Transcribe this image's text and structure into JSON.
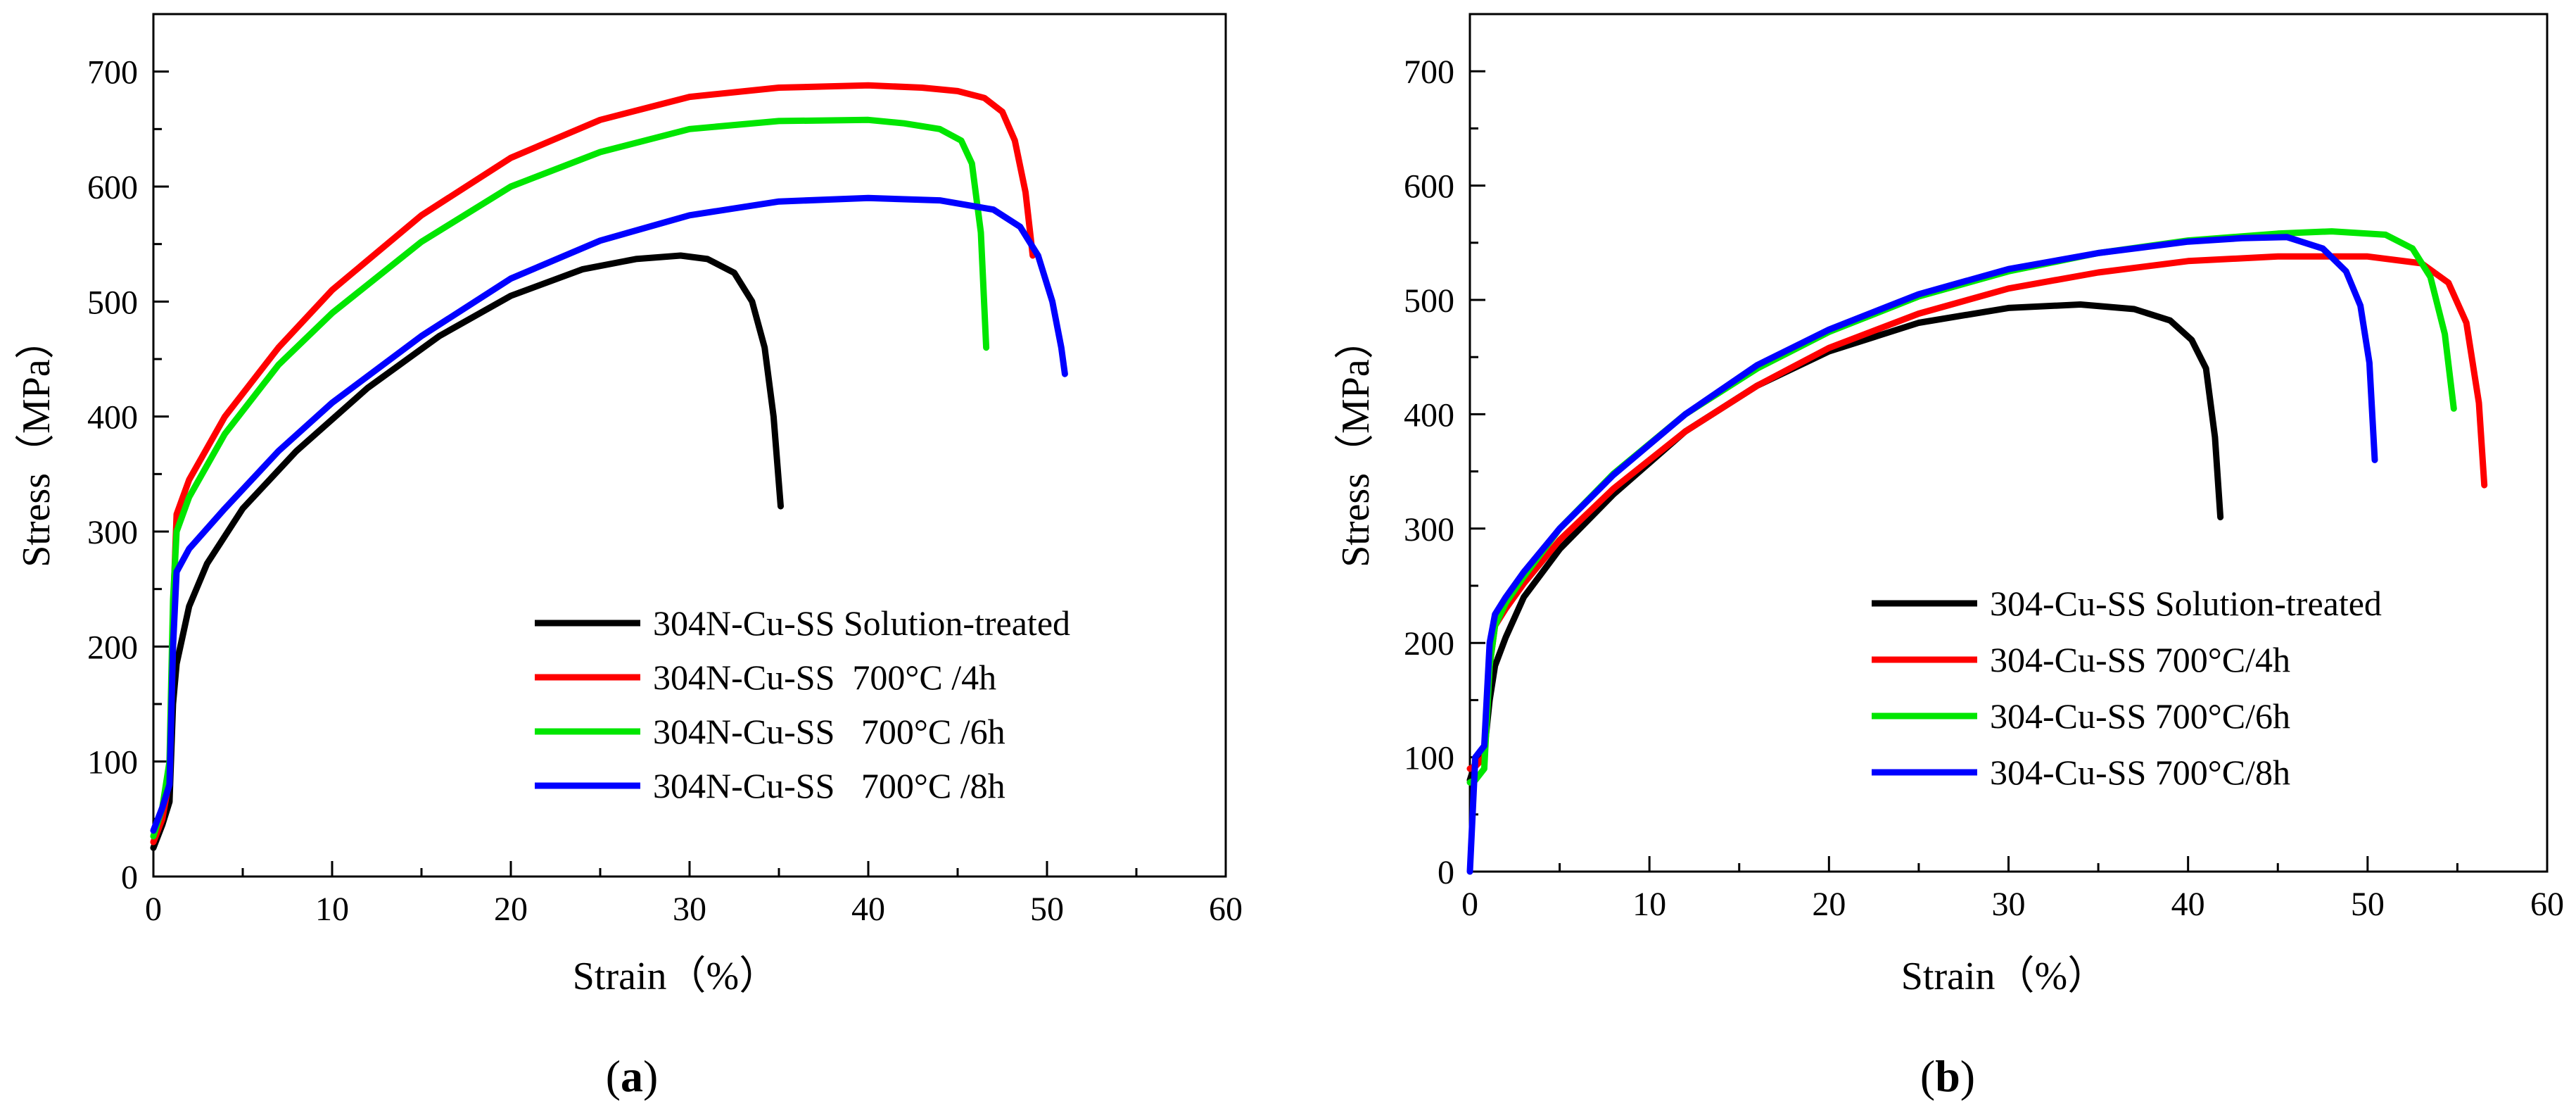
{
  "chart_data": [
    {
      "type": "line",
      "panel_label": "(a)",
      "panel_label_parts": [
        "(",
        "a",
        ")"
      ],
      "xlabel": "Strain（%）",
      "ylabel": "Stress（MPa）",
      "xlim": [
        0,
        60
      ],
      "ylim": [
        0,
        750
      ],
      "xticks": [
        0,
        10,
        20,
        30,
        40,
        50,
        60
      ],
      "yticks": [
        0,
        100,
        200,
        300,
        400,
        500,
        600,
        700
      ],
      "grid": false,
      "legend_position": "bottom-right",
      "series": [
        {
          "name": "304N-Cu-SS Solution-treated",
          "color": "#000000",
          "x": [
            0,
            0.5,
            0.9,
            1.1,
            1.3,
            2,
            3,
            5,
            8,
            12,
            16,
            20,
            24,
            27,
            29.5,
            31,
            32.5,
            33.5,
            34.2,
            34.7,
            35.1
          ],
          "y": [
            25,
            45,
            65,
            150,
            185,
            235,
            272,
            320,
            370,
            425,
            470,
            505,
            528,
            537,
            540,
            537,
            525,
            500,
            460,
            400,
            322
          ]
        },
        {
          "name": "304N-Cu-SS  700°C /4h",
          "color": "#ff0000",
          "x": [
            0,
            0.5,
            0.9,
            1.1,
            1.3,
            2,
            4,
            7,
            10,
            15,
            20,
            25,
            30,
            35,
            40,
            43,
            45,
            46.5,
            47.5,
            48.2,
            48.8,
            49.2
          ],
          "y": [
            30,
            50,
            85,
            230,
            315,
            345,
            400,
            460,
            510,
            575,
            625,
            658,
            678,
            686,
            688,
            686,
            683,
            677,
            665,
            640,
            595,
            540
          ]
        },
        {
          "name": "304N-Cu-SS   700°C /6h",
          "color": "#00e600",
          "x": [
            0,
            0.5,
            0.9,
            1.1,
            1.3,
            2,
            4,
            7,
            10,
            15,
            20,
            25,
            30,
            35,
            40,
            42,
            44,
            45.2,
            45.8,
            46.3,
            46.6
          ],
          "y": [
            35,
            60,
            100,
            240,
            300,
            330,
            385,
            445,
            490,
            552,
            600,
            630,
            650,
            657,
            658,
            655,
            650,
            640,
            620,
            560,
            460
          ]
        },
        {
          "name": "304N-Cu-SS   700°C /8h",
          "color": "#0000ff",
          "x": [
            0,
            0.5,
            0.9,
            1.1,
            1.3,
            2,
            4,
            7,
            10,
            15,
            20,
            25,
            30,
            35,
            40,
            44,
            47,
            48.5,
            49.5,
            50.3,
            50.8,
            51
          ],
          "y": [
            40,
            60,
            80,
            200,
            265,
            285,
            320,
            370,
            412,
            470,
            520,
            553,
            575,
            587,
            590,
            588,
            580,
            565,
            540,
            500,
            460,
            437
          ]
        }
      ]
    },
    {
      "type": "line",
      "panel_label": "(b)",
      "panel_label_parts": [
        "(",
        "b",
        ")"
      ],
      "xlabel": "Strain（%）",
      "ylabel": "Stress（MPa）",
      "xlim": [
        0,
        60
      ],
      "ylim": [
        0,
        750
      ],
      "xticks": [
        0,
        10,
        20,
        30,
        40,
        50,
        60
      ],
      "yticks": [
        0,
        100,
        200,
        300,
        400,
        500,
        600,
        700
      ],
      "grid": false,
      "legend_position": "bottom-right",
      "series": [
        {
          "name": "304-Cu-SS Solution-treated",
          "color": "#000000",
          "x": [
            0,
            0.3,
            0.8,
            1.1,
            1.4,
            2,
            3,
            5,
            8,
            12,
            16,
            20,
            25,
            30,
            34,
            37,
            39,
            40.2,
            41,
            41.5,
            41.8
          ],
          "y": [
            80,
            95,
            105,
            150,
            180,
            205,
            240,
            282,
            330,
            385,
            425,
            455,
            480,
            493,
            496,
            492,
            482,
            465,
            440,
            380,
            310
          ]
        },
        {
          "name": "304-Cu-SS 700°C/4h",
          "color": "#ff0000",
          "x": [
            0,
            0.3,
            0.8,
            1.1,
            1.4,
            2,
            3,
            5,
            8,
            12,
            16,
            20,
            25,
            30,
            35,
            40,
            45,
            50,
            53,
            54.5,
            55.5,
            56.2,
            56.5
          ],
          "y": [
            90,
            92,
            100,
            180,
            215,
            230,
            252,
            290,
            335,
            385,
            425,
            458,
            488,
            510,
            524,
            534,
            538,
            538,
            532,
            515,
            480,
            410,
            338
          ]
        },
        {
          "name": "304-Cu-SS 700°C/6h",
          "color": "#00e600",
          "x": [
            0,
            0.3,
            0.8,
            1.1,
            1.4,
            2,
            3,
            5,
            8,
            12,
            16,
            20,
            25,
            30,
            35,
            40,
            45,
            48,
            51,
            52.5,
            53.5,
            54.3,
            54.8
          ],
          "y": [
            78,
            80,
            90,
            180,
            215,
            235,
            258,
            300,
            348,
            400,
            440,
            472,
            503,
            525,
            541,
            552,
            558,
            560,
            557,
            545,
            520,
            470,
            405
          ]
        },
        {
          "name": "304-Cu-SS 700°C/8h",
          "color": "#0000ff",
          "x": [
            0,
            0.3,
            0.8,
            1.1,
            1.4,
            2,
            3,
            5,
            8,
            12,
            16,
            20,
            25,
            30,
            35,
            40,
            43,
            45.5,
            47.5,
            48.8,
            49.6,
            50.1,
            50.4
          ],
          "y": [
            0,
            100,
            110,
            200,
            225,
            240,
            262,
            300,
            347,
            400,
            443,
            474,
            505,
            527,
            541,
            551,
            554,
            555,
            545,
            525,
            495,
            445,
            360
          ]
        }
      ]
    }
  ]
}
